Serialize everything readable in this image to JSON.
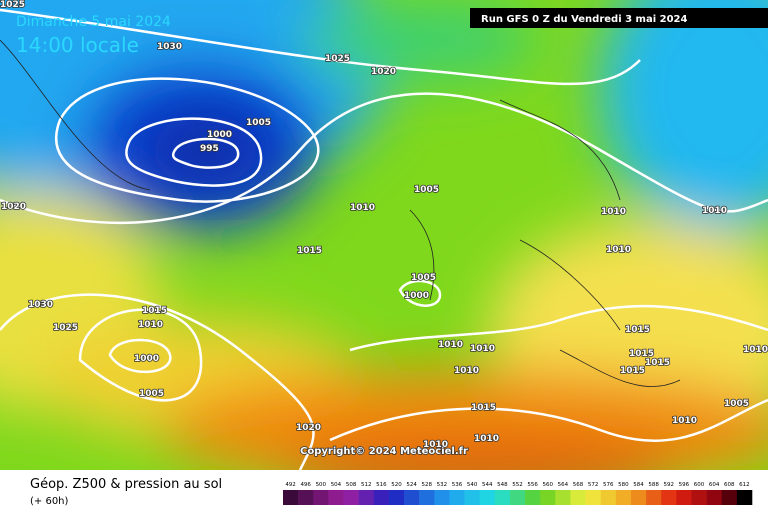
{
  "header": {
    "date": "Dimanche 5 mai 2024",
    "time": "14:00 locale",
    "run": "Run GFS 0 Z du Vendredi 3 mai 2024"
  },
  "copyright": "Copyright© 2024 Meteociel.fr",
  "footer": {
    "title": "Géop. Z500 & pression au sol",
    "lead": "(+ 60h)"
  },
  "scale": [
    492,
    496,
    500,
    504,
    508,
    512,
    516,
    520,
    524,
    528,
    532,
    536,
    540,
    544,
    548,
    552,
    556,
    560,
    564,
    568,
    572,
    576,
    580,
    584,
    588,
    592,
    596,
    600,
    604,
    608,
    612
  ],
  "isobar_labels": [
    1025,
    1030,
    1025,
    1020,
    1005,
    1000,
    995,
    1020,
    1005,
    1010,
    1015,
    1005,
    1000,
    1030,
    1015,
    1010,
    1025,
    1000,
    1005,
    1010,
    1010,
    1010,
    1015,
    1015,
    1015,
    1015,
    1010,
    1010,
    1010,
    1015,
    1010,
    1010,
    1020,
    1010,
    1005,
    1010
  ]
}
